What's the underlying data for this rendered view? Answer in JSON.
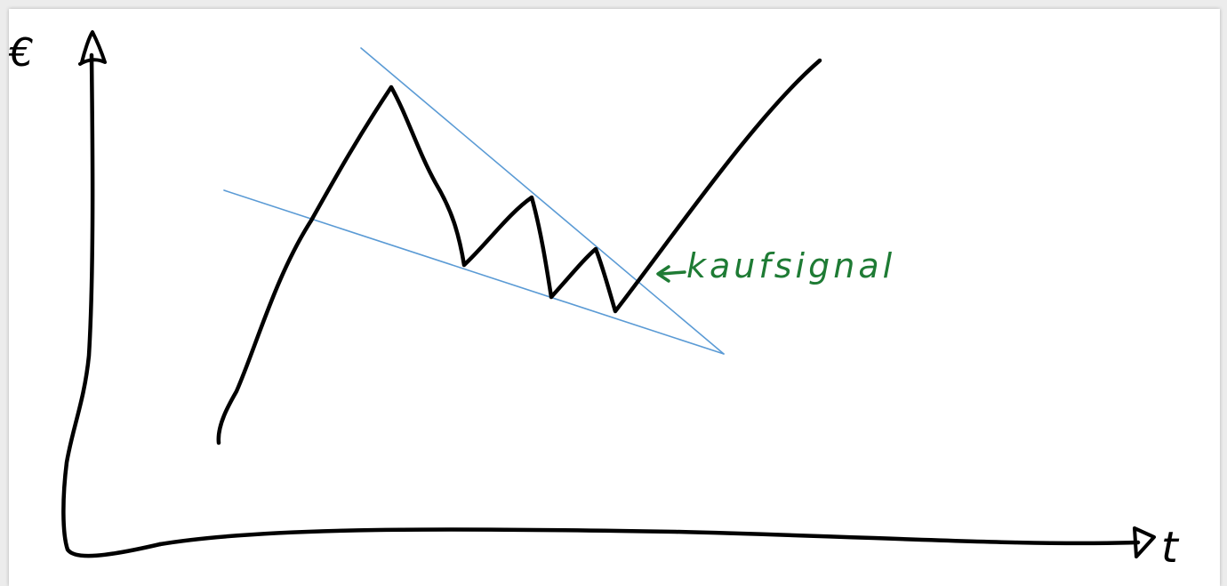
{
  "canvas": {
    "background": "#ffffff",
    "frame": "#ececec"
  },
  "axes": {
    "y_label": "€",
    "x_label": "t",
    "ink_color": "#000000"
  },
  "trendlines": {
    "color": "#5b9bd5"
  },
  "price_curve": {
    "color": "#000000"
  },
  "annotation": {
    "text": "kaufsignal",
    "color": "#1e7b34",
    "icon": "arrow-left-icon"
  }
}
